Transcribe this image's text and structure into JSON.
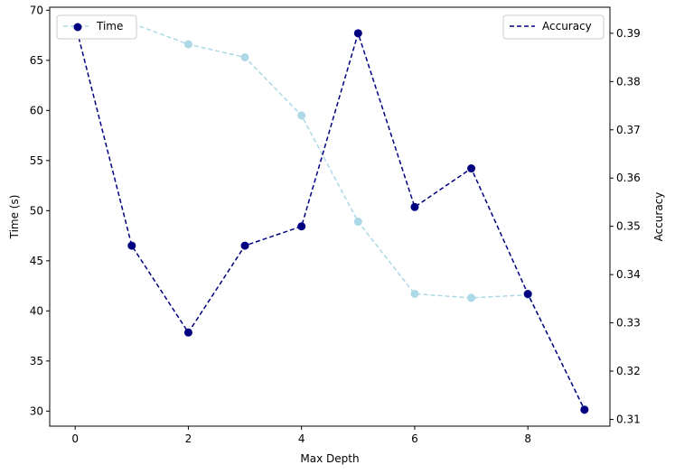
{
  "chart_data": {
    "type": "line",
    "title": "",
    "xlabel": "Max Depth",
    "ylabel_left": "Time (s)",
    "ylabel_right": "Accuracy",
    "x": [
      0,
      1,
      2,
      3,
      4,
      5,
      6,
      7,
      8,
      9
    ],
    "xlim": [
      -0.45,
      9.45
    ],
    "x_ticks": [
      "0",
      "2",
      "4",
      "6",
      "8"
    ],
    "ylim_left": [
      28.5,
      70.3
    ],
    "y_ticks_left": [
      "30",
      "35",
      "40",
      "45",
      "50",
      "55",
      "60",
      "65",
      "70"
    ],
    "ylim_right": [
      0.3086,
      0.3954
    ],
    "y_ticks_right": [
      "0.31",
      "0.32",
      "0.33",
      "0.34",
      "0.35",
      "0.36",
      "0.37",
      "0.38",
      "0.39"
    ],
    "grid": false,
    "series": [
      {
        "name": "Time",
        "axis": "left",
        "color": "#add8e6",
        "linestyle": "dashed",
        "marker": "circle",
        "legend_position": "top-left",
        "values": [
          68.6,
          68.7,
          66.6,
          65.3,
          59.5,
          48.9,
          41.7,
          41.3,
          41.6,
          30.2
        ]
      },
      {
        "name": "Accuracy",
        "axis": "right",
        "color": "#000080",
        "linestyle": "dashed",
        "marker": "circle",
        "legend_position": "top-right",
        "values": [
          0.392,
          0.346,
          0.328,
          0.346,
          0.35,
          0.39,
          0.354,
          0.362,
          0.336,
          0.312
        ]
      }
    ]
  }
}
